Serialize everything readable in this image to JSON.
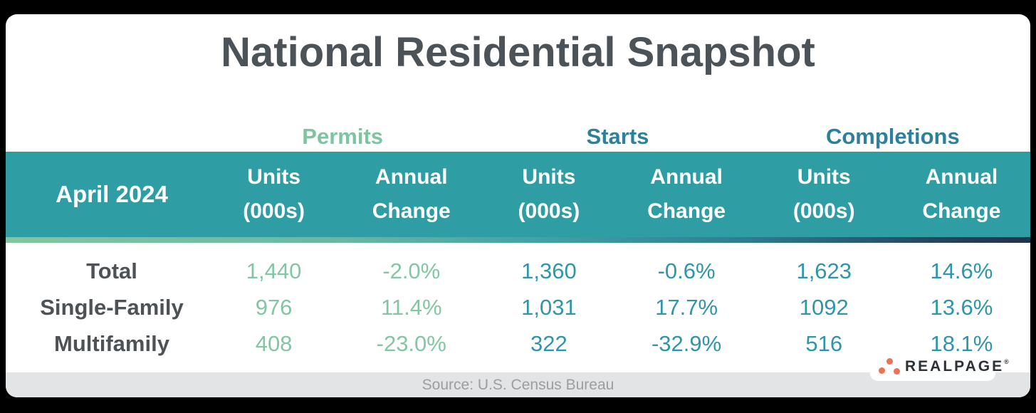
{
  "title": "National Residential Snapshot",
  "period": "April 2024",
  "groups": [
    {
      "label": "Permits"
    },
    {
      "label": "Starts"
    },
    {
      "label": "Completions"
    }
  ],
  "subheaders": {
    "units_top": "Units",
    "units_bottom": "(000s)",
    "annual_top": "Annual",
    "annual_bottom": "Change"
  },
  "rows": [
    {
      "label": "Total",
      "cells": [
        "1,440",
        "-2.0%",
        "1,360",
        "-0.6%",
        "1,623",
        "14.6%"
      ]
    },
    {
      "label": "Single-Family",
      "cells": [
        "976",
        "11.4%",
        "1,031",
        "17.7%",
        "1092",
        "13.6%"
      ]
    },
    {
      "label": "Multifamily",
      "cells": [
        "408",
        "-23.0%",
        "322",
        "-32.9%",
        "516",
        "18.1%"
      ]
    }
  ],
  "footer": {
    "source": "Source: U.S. Census Bureau"
  },
  "logo": {
    "text": "REALPAGE",
    "mark": "®"
  },
  "colors": {
    "header_band_teal": "#2f9da4",
    "permits_green": "#7ec4a1",
    "starts_completions_label_teal": "#2d7f9c",
    "data_value_teal": "#2e95aa",
    "title_gray": "#4c5358",
    "row_label_gray": "#4d5257",
    "footer_bar_bg": "#e3e4e6",
    "footer_text_gray": "#9b9da0",
    "logo_orange": "#ed7254",
    "gradient_strip": [
      "#85c49f",
      "#44a2a3",
      "#223349"
    ],
    "background": "#000000"
  },
  "chart_data": {
    "type": "table",
    "title": "National Residential Snapshot",
    "period": "April 2024",
    "column_groups": [
      "Permits",
      "Starts",
      "Completions"
    ],
    "columns_per_group": [
      "Units (000s)",
      "Annual Change"
    ],
    "row_labels": [
      "Total",
      "Single-Family",
      "Multifamily"
    ],
    "values": {
      "Permits": {
        "units_000s": [
          1440,
          976,
          408
        ],
        "annual_change_pct": [
          -2.0,
          11.4,
          -23.0
        ]
      },
      "Starts": {
        "units_000s": [
          1360,
          1031,
          322
        ],
        "annual_change_pct": [
          -0.6,
          17.7,
          -32.9
        ]
      },
      "Completions": {
        "units_000s": [
          1623,
          1092,
          516
        ],
        "annual_change_pct": [
          14.6,
          13.6,
          18.1
        ]
      }
    },
    "source": "Source: U.S. Census Bureau"
  }
}
